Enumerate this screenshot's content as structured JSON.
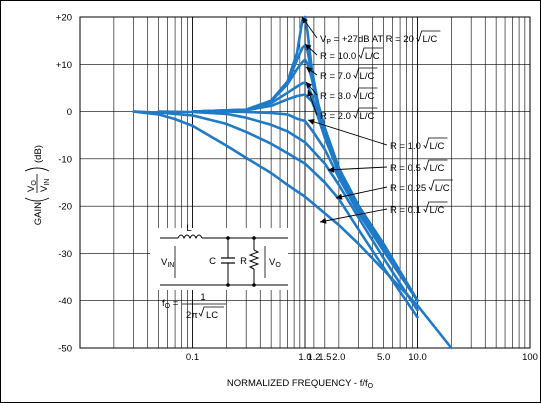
{
  "chart_data": {
    "type": "line",
    "xlabel": "NORMALIZED FREQUENCY - f/f",
    "xlabel_sub": "O",
    "ylabel_parts": {
      "gain": "GAIN",
      "num": "V",
      "num_sub": "O",
      "den": "V",
      "den_sub": "IN",
      "unit": "(dB)"
    },
    "x_scale": "log",
    "xlim": [
      0.01,
      100
    ],
    "ylim": [
      -50,
      20
    ],
    "grid": true,
    "x_ticks": [
      {
        "value": 0.1,
        "label": "0.1"
      },
      {
        "value": 1.0,
        "label": "1.0"
      },
      {
        "value": 1.2,
        "label": "1.2"
      },
      {
        "value": 1.5,
        "label": "1.5"
      },
      {
        "value": 2.0,
        "label": "2.0"
      },
      {
        "value": 5.0,
        "label": "5.0"
      },
      {
        "value": 10,
        "label": "10.0"
      },
      {
        "value": 100,
        "label": "100"
      }
    ],
    "y_ticks": [
      {
        "value": 20,
        "label": "+20"
      },
      {
        "value": 10,
        "label": "+10"
      },
      {
        "value": 0,
        "label": "0"
      },
      {
        "value": -10,
        "label": "-10"
      },
      {
        "value": -20,
        "label": "-20"
      },
      {
        "value": -30,
        "label": "-30"
      },
      {
        "value": -40,
        "label": "-40"
      },
      {
        "value": -50,
        "label": "-50"
      }
    ],
    "series": [
      {
        "name": "R = 20 √L/C",
        "x": [
          0.1,
          0.3,
          0.5,
          0.7,
          0.85,
          0.95,
          1.0,
          1.05,
          1.15,
          1.3,
          1.5,
          2.0,
          3.0,
          5.0,
          10.0
        ],
        "y": [
          0,
          0.4,
          2.3,
          6.4,
          12.5,
          19.5,
          20,
          17,
          9,
          2,
          -3.5,
          -12,
          -20,
          -28,
          -40
        ]
      },
      {
        "name": "R = 10.0 √L/C",
        "x": [
          0.1,
          0.3,
          0.5,
          0.7,
          0.85,
          0.95,
          1.0,
          1.05,
          1.15,
          1.3,
          1.5,
          2.0,
          3.0,
          5.0,
          10.0
        ],
        "y": [
          0,
          0.4,
          2.3,
          6.2,
          11,
          13.5,
          14,
          13,
          8,
          1.5,
          -3.5,
          -12,
          -20,
          -28,
          -40
        ]
      },
      {
        "name": "R = 7.0 √L/C",
        "x": [
          0.1,
          0.3,
          0.5,
          0.7,
          0.85,
          0.95,
          1.0,
          1.05,
          1.15,
          1.3,
          1.5,
          2.0,
          3.0,
          5.0,
          10.0
        ],
        "y": [
          0,
          0.4,
          2.2,
          5.8,
          9,
          10.5,
          11,
          10.2,
          7,
          1,
          -4,
          -12,
          -20,
          -28,
          -40
        ]
      },
      {
        "name": "R = 3.0 √L/C",
        "x": [
          0.1,
          0.3,
          0.5,
          0.7,
          0.85,
          0.95,
          1.0,
          1.05,
          1.15,
          1.3,
          1.5,
          2.0,
          3.0,
          5.0,
          10.0
        ],
        "y": [
          0,
          0.3,
          1.8,
          4,
          5.3,
          6,
          6.1,
          5.6,
          3.5,
          -0.5,
          -5,
          -12.5,
          -20.5,
          -28.5,
          -40
        ]
      },
      {
        "name": "R = 2.0 √L/C",
        "x": [
          0.1,
          0.3,
          0.5,
          0.7,
          0.85,
          1.0,
          1.15,
          1.3,
          1.5,
          2.0,
          3.0,
          5.0,
          10.0
        ],
        "y": [
          0,
          0.3,
          1.2,
          2.6,
          3.3,
          3.6,
          2.2,
          -1,
          -5.5,
          -13,
          -21,
          -29,
          -40
        ]
      },
      {
        "name": "R = 1.0 √L/C",
        "x": [
          0.1,
          0.2,
          0.3,
          0.5,
          0.7,
          0.85,
          1.0,
          1.2,
          1.5,
          2.0,
          3.0,
          5.0,
          10.0
        ],
        "y": [
          0,
          0,
          -0.1,
          -0.3,
          -0.6,
          -1.5,
          -2,
          -4.5,
          -8,
          -14,
          -21.5,
          -29.5,
          -40
        ]
      },
      {
        "name": "R = 0.5 √L/C",
        "x": [
          0.05,
          0.1,
          0.2,
          0.3,
          0.5,
          0.7,
          1.0,
          1.5,
          2.0,
          3.0,
          5.0,
          10.0
        ],
        "y": [
          0,
          -0.1,
          -0.5,
          -1.3,
          -2.8,
          -4.2,
          -6.5,
          -11,
          -15.5,
          -22.5,
          -31,
          -42
        ]
      },
      {
        "name": "R = 0.25 √L/C",
        "x": [
          0.03,
          0.05,
          0.1,
          0.2,
          0.3,
          0.5,
          0.7,
          1.0,
          1.5,
          2.0,
          3.0,
          5.0,
          10.0
        ],
        "y": [
          0,
          -0.2,
          -0.8,
          -2.6,
          -4.3,
          -6.8,
          -8.8,
          -11,
          -15,
          -18.5,
          -25,
          -33,
          -43.5
        ]
      },
      {
        "name": "R = 0.1 √L/C",
        "x": [
          0.03,
          0.05,
          0.07,
          0.1,
          0.2,
          0.3,
          0.5,
          0.7,
          1.0,
          2.0,
          3.0,
          5.0,
          10.0,
          20.0
        ],
        "y": [
          0,
          -0.6,
          -1.6,
          -3,
          -7.2,
          -9.8,
          -13,
          -15.5,
          -18,
          -24,
          -28,
          -33.5,
          -41,
          -50
        ]
      }
    ],
    "annotations": [
      {
        "series": "R = 20 √L/C",
        "text_pre": "V",
        "text_sub": "P",
        "text_mid": " = +27dB AT R = 20 ",
        "text_root": "L/C"
      },
      {
        "series": "R = 10.0 √L/C",
        "text_pre": "R = 10.0 ",
        "text_root": "L/C"
      },
      {
        "series": "R = 7.0 √L/C",
        "text_pre": "R = 7.0 ",
        "text_root": "L/C"
      },
      {
        "series": "R = 3.0 √L/C",
        "text_pre": "R = 3.0 ",
        "text_root": "L/C"
      },
      {
        "series": "R = 2.0 √L/C",
        "text_pre": "R = 2.0 ",
        "text_root": "L/C"
      },
      {
        "series": "R = 1.0 √L/C",
        "text_pre": "R = 1.0 ",
        "text_root": "L/C"
      },
      {
        "series": "R = 0.5 √L/C",
        "text_pre": "R = 0.5 ",
        "text_root": "L/C"
      },
      {
        "series": "R = 0.25 √L/C",
        "text_pre": "R = 0.25 ",
        "text_root": "L/C"
      },
      {
        "series": "R = 0.1 √L/C",
        "text_pre": "R = 0.1 ",
        "text_root": "L/C"
      }
    ],
    "line_color": "#1f7ac8"
  },
  "circuit": {
    "inductor_label": "L",
    "capacitor_label": "C",
    "resistor_label": "R",
    "vin_label": "V",
    "vin_sub": "IN",
    "vo_label": "V",
    "vo_sub": "O",
    "formula_lhs": "f",
    "formula_lhs_sub": "O",
    "formula_eq": " = ",
    "formula_num": "1",
    "formula_den_pre": "2π ",
    "formula_den_root": "LC"
  }
}
